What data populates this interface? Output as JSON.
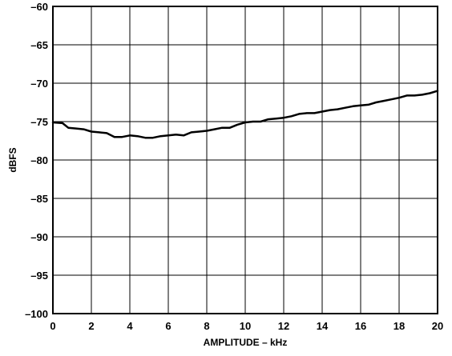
{
  "chart_data": {
    "type": "line",
    "title": "",
    "xlabel": "AMPLITUDE – kHz",
    "ylabel": "dBFS",
    "xlim": [
      0,
      20
    ],
    "ylim": [
      -100,
      -60
    ],
    "grid": true,
    "x_ticks": [
      0,
      2,
      4,
      6,
      8,
      10,
      12,
      14,
      16,
      18,
      20
    ],
    "y_ticks": [
      -60,
      -65,
      -70,
      -75,
      -80,
      -85,
      -90,
      -95,
      -100
    ],
    "x_tick_labels": [
      "0",
      "2",
      "4",
      "6",
      "8",
      "10",
      "12",
      "14",
      "16",
      "18",
      "20"
    ],
    "y_tick_labels": [
      "–60",
      "–65",
      "–70",
      "–75",
      "–80",
      "–85",
      "–90",
      "–95",
      "–100"
    ],
    "line_color": "#000000",
    "series": [
      {
        "x": [
          0,
          0.5,
          0.8,
          1.2,
          1.6,
          2,
          2.4,
          2.8,
          3.2,
          3.6,
          4,
          4.4,
          4.8,
          5.2,
          5.6,
          6,
          6.4,
          6.8,
          7.2,
          7.6,
          8,
          8.4,
          8.8,
          9.2,
          9.6,
          10,
          10.4,
          10.8,
          11.2,
          11.6,
          12,
          12.4,
          12.8,
          13.2,
          13.6,
          14,
          14.4,
          14.8,
          15.2,
          15.6,
          16,
          16.4,
          16.8,
          17.2,
          17.6,
          18,
          18.4,
          18.8,
          19.2,
          19.6,
          20
        ],
        "values": [
          -75.1,
          -75.2,
          -75.8,
          -75.9,
          -76.0,
          -76.3,
          -76.4,
          -76.5,
          -77.0,
          -77.0,
          -76.8,
          -76.9,
          -77.1,
          -77.1,
          -76.9,
          -76.8,
          -76.7,
          -76.8,
          -76.4,
          -76.3,
          -76.2,
          -76.0,
          -75.8,
          -75.8,
          -75.4,
          -75.1,
          -75.0,
          -75.0,
          -74.7,
          -74.6,
          -74.5,
          -74.3,
          -74.0,
          -73.9,
          -73.9,
          -73.7,
          -73.5,
          -73.4,
          -73.2,
          -73.0,
          -72.9,
          -72.8,
          -72.5,
          -72.3,
          -72.1,
          -71.9,
          -71.6,
          -71.6,
          -71.5,
          -71.3,
          -71.0
        ]
      }
    ]
  }
}
